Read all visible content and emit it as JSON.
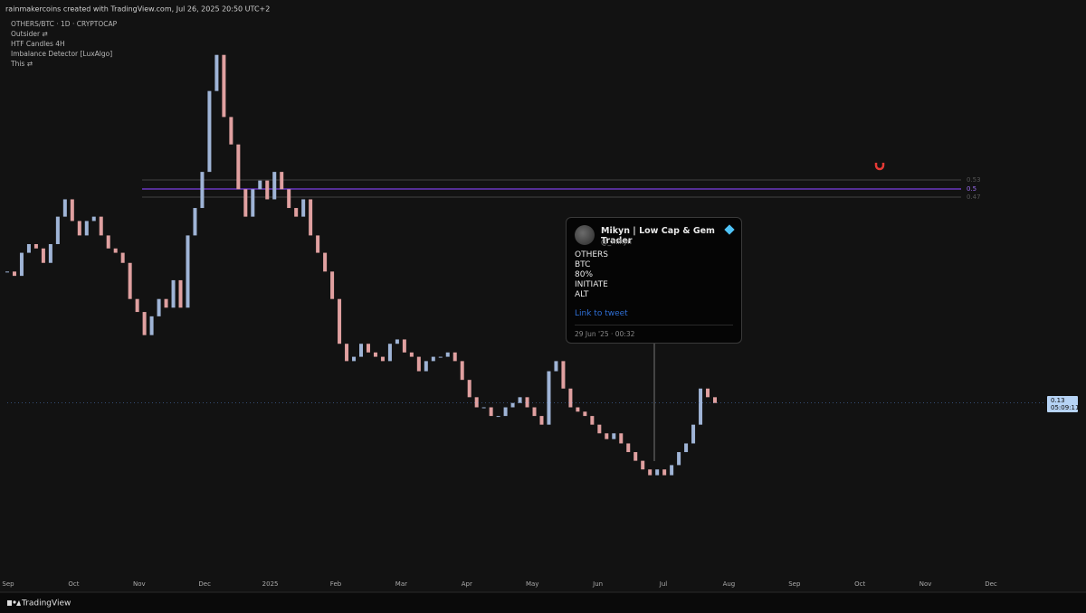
{
  "header": {
    "credit": "rainmakercoins created with TradingView.com, Jul 26, 2025 20:50 UTC+2",
    "symbol": "OTHERS/BTC · 1D · CRYPTOCAP",
    "indicators": [
      "Outsider ⇄",
      "HTF Candles 4H",
      "Imbalance Detector [LuxAlgo]",
      "This ⇄"
    ]
  },
  "chart_data": {
    "type": "candlestick",
    "closes": [
      0.222,
      0.219,
      0.235,
      0.241,
      0.238,
      0.228,
      0.241,
      0.26,
      0.272,
      0.257,
      0.247,
      0.257,
      0.26,
      0.247,
      0.238,
      0.235,
      0.228,
      0.203,
      0.194,
      0.178,
      0.191,
      0.203,
      0.197,
      0.216,
      0.197,
      0.247,
      0.266,
      0.291,
      0.347,
      0.372,
      0.329,
      0.31,
      0.279,
      0.26,
      0.279,
      0.285,
      0.272,
      0.291,
      0.279,
      0.266,
      0.26,
      0.272,
      0.247,
      0.235,
      0.222,
      0.203,
      0.172,
      0.16,
      0.163,
      0.172,
      0.166,
      0.163,
      0.16,
      0.172,
      0.175,
      0.166,
      0.163,
      0.153,
      0.16,
      0.163,
      0.163,
      0.166,
      0.16,
      0.147,
      0.135,
      0.128,
      0.128,
      0.122,
      0.122,
      0.128,
      0.131,
      0.135,
      0.128,
      0.122,
      0.116,
      0.153,
      0.16,
      0.141,
      0.128,
      0.125,
      0.122,
      0.116,
      0.11,
      0.106,
      0.11,
      0.103,
      0.097,
      0.091,
      0.085,
      0.081,
      0.085,
      0.081,
      0.088,
      0.097,
      0.103,
      0.116,
      0.141,
      0.135,
      0.131
    ],
    "ylim": [
      0,
      0.41
    ],
    "up_color": "#9fb4d6",
    "down_color": "#e0a0a0",
    "x_labels": [
      "Sep",
      "Oct",
      "Nov",
      "Dec",
      "2025",
      "Feb",
      "Mar",
      "Apr",
      "May",
      "Jun",
      "Jul",
      "Aug",
      "Sep",
      "Oct",
      "Nov",
      "Dec"
    ],
    "levels": [
      "0.53",
      "0.5",
      "0.47"
    ],
    "price_label": "0.13",
    "countdown": "05:09:11"
  },
  "tweet": {
    "name": "Mikyn | Low Cap & Gem Trader",
    "handle": "@_mikyn",
    "lines": [
      "OTHERS",
      "BTC",
      "80%",
      "INITIATE",
      "ALT"
    ],
    "link": "Link to tweet",
    "time": "29 Jun '25 · 00:32"
  },
  "footer": {
    "brand": "TradingView"
  }
}
